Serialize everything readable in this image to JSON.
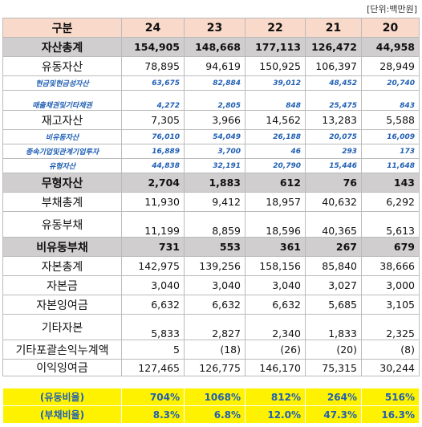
{
  "unit": "[단위:백만원]",
  "table": {
    "header": [
      "구분",
      "24",
      "23",
      "22",
      "21",
      "20"
    ],
    "rows": [
      [
        "자산총계",
        "154,905",
        "148,668",
        "177,113",
        "126,472",
        "44,958"
      ],
      [
        "유동자산",
        "78,895",
        "94,619",
        "150,925",
        "106,397",
        "28,949"
      ],
      [
        "현금및현금성자산",
        "63,675",
        "82,884",
        "39,012",
        "48,452",
        "20,740"
      ],
      [
        "매출채권및기타채권",
        "4,272",
        "2,805",
        "848",
        "25,475",
        "843"
      ],
      [
        "재고자산",
        "7,305",
        "3,966",
        "14,562",
        "13,283",
        "5,588"
      ],
      [
        "비유동자산",
        "76,010",
        "54,049",
        "26,188",
        "20,075",
        "16,009"
      ],
      [
        "종속기업및관계기업투자",
        "16,889",
        "3,700",
        "46",
        "293",
        "173"
      ],
      [
        "유형자산",
        "44,838",
        "32,191",
        "20,790",
        "15,446",
        "11,648"
      ],
      [
        "무형자산",
        "2,704",
        "1,883",
        "612",
        "76",
        "143"
      ],
      [
        "부채총계",
        "11,930",
        "9,412",
        "18,957",
        "40,632",
        "6,292"
      ],
      [
        "유동부채",
        "11,199",
        "8,859",
        "18,596",
        "40,365",
        "5,613"
      ],
      [
        "비유동부채",
        "731",
        "553",
        "361",
        "267",
        "679"
      ],
      [
        "자본총계",
        "142,975",
        "139,256",
        "158,156",
        "85,840",
        "38,666"
      ],
      [
        "자본금",
        "3,040",
        "3,040",
        "3,040",
        "3,027",
        "3,000"
      ],
      [
        "자본잉여금",
        "6,632",
        "6,632",
        "6,632",
        "5,685",
        "3,105"
      ],
      [
        "기타자본",
        "5,833",
        "2,827",
        "2,340",
        "1,833",
        "2,325"
      ],
      [
        "기타포괄손익누계액",
        "5",
        "(18)",
        "(26)",
        "(20)",
        "(8)"
      ],
      [
        "이익잉여금",
        "127,465",
        "126,775",
        "146,170",
        "75,315",
        "30,244"
      ]
    ]
  },
  "ratios": {
    "rows": [
      [
        "(유동비율)",
        "704%",
        "1068%",
        "812%",
        "264%",
        "516%"
      ],
      [
        "(부채비율)",
        "8.3%",
        "6.8%",
        "12.0%",
        "47.3%",
        "16.3%"
      ]
    ]
  }
}
